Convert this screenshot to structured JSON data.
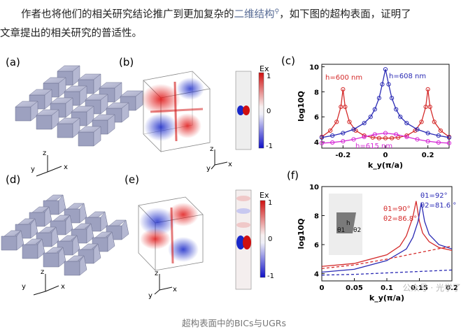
{
  "intro": {
    "line1_pre": "作者也将他们的相关研究结论推广到更加复杂的",
    "line1_link": "二维结构",
    "line1_post": "，如下图的超构表面，证明了",
    "line2": "文章提出的相关研究的普适性。"
  },
  "figure": {
    "labels": [
      "(a)",
      "(b)",
      "(c)",
      "(d)",
      "(e)",
      "(f)"
    ],
    "axes_a": [
      "z",
      "y",
      "x"
    ],
    "axes_b": [
      "z",
      "y",
      "x"
    ],
    "axes_d": [
      "z",
      "y",
      "x"
    ],
    "axes_e": [
      "z",
      "y",
      "x"
    ],
    "colorbar_b": {
      "title": "Ex",
      "max": "1",
      "mid": "0",
      "min": "-1"
    },
    "colorbar_e": {
      "title": "Ex",
      "max": "1",
      "mid": "0",
      "min": "-1"
    }
  },
  "chart_data": [
    {
      "type": "scatter",
      "panel": "(c)",
      "xlabel": "k_y(π/a)",
      "ylabel": "log10Q",
      "xlim": [
        -0.3,
        0.3
      ],
      "ylim": [
        3.5,
        10.2
      ],
      "xticks": [
        "-0.2",
        "0",
        "0.2"
      ],
      "yticks": [
        "4",
        "6",
        "8",
        "10"
      ],
      "series": [
        {
          "name": "h=600 nm",
          "color": "#d42a2a",
          "x": [
            -0.3,
            -0.26,
            -0.23,
            -0.21,
            -0.2,
            -0.19,
            -0.17,
            -0.14,
            -0.1,
            -0.06,
            -0.03,
            0,
            0.03,
            0.06,
            0.1,
            0.14,
            0.17,
            0.19,
            0.2,
            0.21,
            0.23,
            0.26,
            0.3
          ],
          "y": [
            4.4,
            4.9,
            5.6,
            6.8,
            8.2,
            6.8,
            5.6,
            4.9,
            4.5,
            4.35,
            4.3,
            4.3,
            4.3,
            4.35,
            4.5,
            4.9,
            5.6,
            6.8,
            8.2,
            6.8,
            5.6,
            4.9,
            4.4
          ]
        },
        {
          "name": "h=608 nm",
          "color": "#2a2ab4",
          "x": [
            -0.3,
            -0.25,
            -0.2,
            -0.15,
            -0.1,
            -0.07,
            -0.05,
            -0.03,
            -0.015,
            0,
            0.015,
            0.03,
            0.05,
            0.07,
            0.1,
            0.15,
            0.2,
            0.25,
            0.3
          ],
          "y": [
            4.35,
            4.5,
            4.7,
            5.0,
            5.5,
            6.0,
            6.6,
            7.5,
            8.6,
            9.8,
            8.6,
            7.5,
            6.6,
            6.0,
            5.5,
            5.0,
            4.7,
            4.5,
            4.35
          ]
        },
        {
          "name": "h=615 nm",
          "color": "#d62ad6",
          "x": [
            -0.3,
            -0.25,
            -0.2,
            -0.15,
            -0.1,
            -0.05,
            0,
            0.05,
            0.1,
            0.15,
            0.2,
            0.25,
            0.3
          ],
          "y": [
            3.9,
            3.95,
            4.05,
            4.2,
            4.4,
            4.6,
            4.7,
            4.6,
            4.4,
            4.2,
            4.05,
            3.95,
            3.9
          ]
        }
      ]
    },
    {
      "type": "line",
      "panel": "(f)",
      "xlabel": "k_y(π/a)",
      "ylabel": "log10Q",
      "xlim": [
        0,
        0.2
      ],
      "ylim": [
        3.5,
        10
      ],
      "xticks": [
        "0",
        "0.05",
        "0.1",
        "0.15",
        "0.2"
      ],
      "yticks": [
        "4",
        "6",
        "8",
        "10"
      ],
      "annotations": [
        "θ1=90°",
        "θ2=86.8°",
        "θ1=92°",
        "θ2=81.6 °"
      ],
      "inset_labels": [
        "h",
        "θ1",
        "θ2"
      ],
      "series": [
        {
          "name": "θ1=90°, θ2=86.8°",
          "color": "#d42a2a",
          "style": "solid",
          "x": [
            0,
            0.05,
            0.1,
            0.12,
            0.13,
            0.14,
            0.145,
            0.15,
            0.155,
            0.165,
            0.18,
            0.2
          ],
          "y": [
            4.5,
            4.7,
            5.3,
            5.9,
            6.6,
            7.9,
            9.0,
            7.6,
            6.8,
            6.2,
            5.8,
            5.6
          ]
        },
        {
          "name": "θ1=92°, θ2=81.6°",
          "color": "#2a2ab4",
          "style": "solid",
          "x": [
            0,
            0.05,
            0.1,
            0.13,
            0.14,
            0.148,
            0.153,
            0.158,
            0.165,
            0.18,
            0.2
          ],
          "y": [
            4.1,
            4.3,
            4.9,
            5.7,
            6.5,
            7.6,
            8.9,
            7.6,
            6.7,
            6.0,
            5.7
          ]
        },
        {
          "name": "red-dashed",
          "color": "#d42a2a",
          "style": "dashed",
          "x": [
            0,
            0.05,
            0.1,
            0.15,
            0.2
          ],
          "y": [
            4.35,
            4.6,
            5.0,
            5.45,
            5.9
          ]
        },
        {
          "name": "blue-dashed",
          "color": "#2a2ab4",
          "style": "dashed",
          "x": [
            0,
            0.05,
            0.1,
            0.15,
            0.2
          ],
          "y": [
            3.9,
            3.95,
            4.05,
            4.15,
            4.25
          ]
        }
      ]
    }
  ],
  "caption": "超构表面中的BICs与UGRs",
  "watermark": "公众号 · 光学了"
}
